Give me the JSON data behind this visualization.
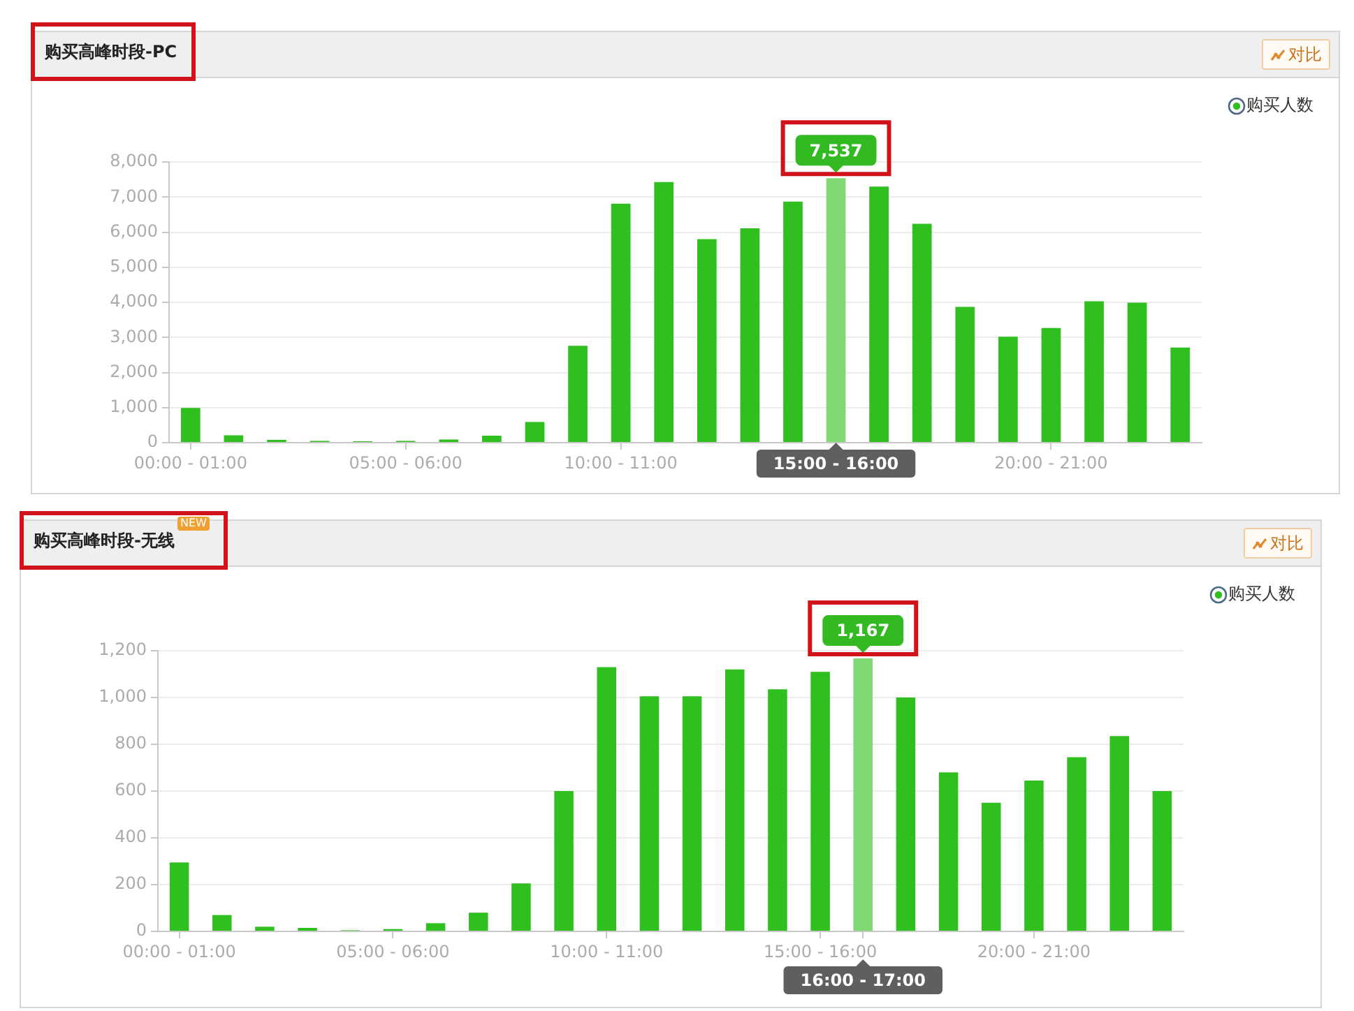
{
  "chart_data": [
    {
      "type": "bar",
      "title": "购买高峰时段-PC",
      "annotations": [
        "对比"
      ],
      "categories": [
        "00:00 - 01:00",
        null,
        null,
        null,
        null,
        "05:00 - 06:00",
        null,
        null,
        null,
        null,
        "10:00 - 11:00",
        null,
        null,
        null,
        null,
        "15:00 - 16:00",
        null,
        null,
        null,
        null,
        "20:00 - 21:00",
        null,
        null,
        null
      ],
      "series": [
        {
          "name": "购买人数",
          "color": "#2fbf1f",
          "colors": [
            "#2fbf1f",
            "#2fbf1f",
            "#2fbf1f",
            "#2fbf1f",
            "#2fbf1f",
            "#2fbf1f",
            "#2fbf1f",
            "#2fbf1f",
            "#2fbf1f",
            "#2fbf1f",
            "#2fbf1f",
            "#2fbf1f",
            "#2fbf1f",
            "#2fbf1f",
            "#2fbf1f",
            "#7fd873",
            "#2fbf1f",
            "#2fbf1f",
            "#2fbf1f",
            "#2fbf1f",
            "#2fbf1f",
            "#2fbf1f",
            "#2fbf1f",
            "#2fbf1f"
          ],
          "values": [
            990,
            210,
            80,
            50,
            40,
            50,
            90,
            200,
            590,
            2760,
            6810,
            7430,
            5800,
            6110,
            6870,
            7537,
            7300,
            6240,
            3870,
            3020,
            3270,
            4030,
            3990,
            2710
          ],
          "value_labels": [
            null,
            null,
            null,
            null,
            null,
            null,
            null,
            null,
            null,
            null,
            null,
            null,
            null,
            null,
            null,
            "7,537",
            null,
            null,
            null,
            null,
            null,
            null,
            null,
            null
          ]
        }
      ],
      "ylim": [
        0,
        8000
      ],
      "yticks": [
        0,
        {
          "value": 1000,
          "label": "1,000"
        },
        {
          "value": 2000,
          "label": "2,000"
        },
        {
          "value": 3000,
          "label": "3,000"
        },
        {
          "value": 4000,
          "label": "4,000"
        },
        {
          "value": 5000,
          "label": "5,000"
        },
        {
          "value": 6000,
          "label": "6,000"
        },
        {
          "value": 7000,
          "label": "7,000"
        },
        {
          "value": 8000,
          "label": "8,000"
        }
      ],
      "grid": "y",
      "legend": "top right"
    },
    {
      "type": "bar",
      "title": "购买高峰时段-无线",
      "annotations": [
        "NEW",
        "对比"
      ],
      "categories": [
        "00:00 - 01:00",
        null,
        null,
        null,
        null,
        "05:00 - 06:00",
        null,
        null,
        null,
        null,
        "10:00 - 11:00",
        null,
        null,
        null,
        null,
        "15:00 - 16:00",
        "16:00 - 17:00",
        null,
        null,
        null,
        "20:00 - 21:00",
        null,
        null,
        null
      ],
      "series": [
        {
          "name": "购买人数",
          "color": "#2fbf1f",
          "colors": [
            "#2fbf1f",
            "#2fbf1f",
            "#2fbf1f",
            "#2fbf1f",
            "#2fbf1f",
            "#2fbf1f",
            "#2fbf1f",
            "#2fbf1f",
            "#2fbf1f",
            "#2fbf1f",
            "#2fbf1f",
            "#2fbf1f",
            "#2fbf1f",
            "#2fbf1f",
            "#2fbf1f",
            "#2fbf1f",
            "#7fd873",
            "#2fbf1f",
            "#2fbf1f",
            "#2fbf1f",
            "#2fbf1f",
            "#2fbf1f",
            "#2fbf1f",
            "#2fbf1f"
          ],
          "values": [
            295,
            70,
            20,
            15,
            5,
            10,
            35,
            80,
            205,
            600,
            1130,
            1005,
            1005,
            1120,
            1035,
            1110,
            1167,
            1000,
            680,
            550,
            645,
            745,
            835,
            600
          ],
          "value_labels": [
            null,
            null,
            null,
            null,
            null,
            null,
            null,
            null,
            null,
            null,
            null,
            null,
            null,
            null,
            null,
            null,
            "1,167",
            null,
            null,
            null,
            null,
            null,
            null,
            null
          ]
        }
      ],
      "ylim": [
        0,
        1200
      ],
      "yticks": [
        0,
        200,
        400,
        600,
        800,
        {
          "value": 1000,
          "label": "1,000"
        },
        {
          "value": 1200,
          "label": "1,200"
        }
      ],
      "grid": "y",
      "legend": "top right"
    }
  ]
}
